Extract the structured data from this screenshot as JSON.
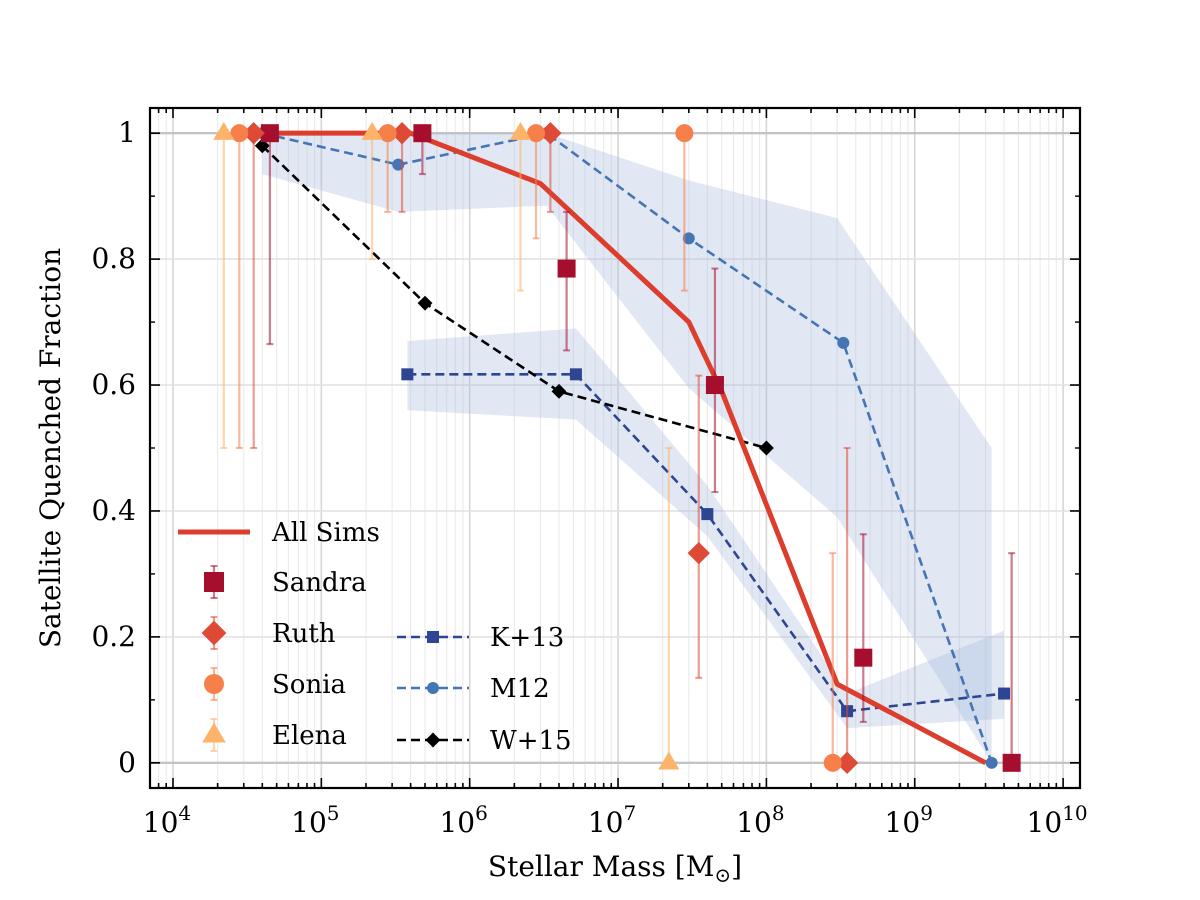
{
  "chart_data": {
    "type": "scatter",
    "title": "",
    "xlabel": "Stellar Mass [M",
    "xlabel_sub": "⊙",
    "xlabel_close": "]",
    "ylabel": "Satellite Quenched Fraction",
    "xscale": "log",
    "xlim": [
      7000,
      13000000000
    ],
    "ylim": [
      -0.04,
      1.04
    ],
    "grid": true,
    "legend_position": "lower-left",
    "x_ticks": [
      {
        "value": 10000,
        "base": "10",
        "exp": "4"
      },
      {
        "value": 100000,
        "base": "10",
        "exp": "5"
      },
      {
        "value": 1000000,
        "base": "10",
        "exp": "6"
      },
      {
        "value": 10000000,
        "base": "10",
        "exp": "7"
      },
      {
        "value": 100000000,
        "base": "10",
        "exp": "8"
      },
      {
        "value": 1000000000,
        "base": "10",
        "exp": "9"
      },
      {
        "value": 10000000000,
        "base": "10",
        "exp": "10"
      }
    ],
    "y_ticks": [
      {
        "value": 0,
        "label": "0"
      },
      {
        "value": 0.2,
        "label": "0.2"
      },
      {
        "value": 0.4,
        "label": "0.4"
      },
      {
        "value": 0.6,
        "label": "0.6"
      },
      {
        "value": 0.8,
        "label": "0.8"
      },
      {
        "value": 1,
        "label": "1"
      }
    ],
    "all_sims": {
      "name": "All Sims",
      "color": "#dc3d2d",
      "x": [
        30000,
        50000,
        400000,
        3000000,
        30000000,
        50000000,
        300000000,
        3000000000
      ],
      "y": [
        1.0,
        1.0,
        1.0,
        0.92,
        0.7,
        0.59,
        0.125,
        0.0
      ]
    },
    "sims": [
      {
        "name": "Sandra",
        "color": "#a50f2d",
        "marker": "square",
        "points": [
          {
            "x": 45000,
            "y": 1.0,
            "lo": 0.665,
            "hi": 1.0
          },
          {
            "x": 480000,
            "y": 1.0,
            "lo": 0.935,
            "hi": 1.0
          },
          {
            "x": 4500000,
            "y": 0.785,
            "lo": 0.655,
            "hi": 0.875
          },
          {
            "x": 45000000,
            "y": 0.6,
            "lo": 0.43,
            "hi": 0.785
          },
          {
            "x": 450000000,
            "y": 0.167,
            "lo": 0.065,
            "hi": 0.363
          },
          {
            "x": 4500000000,
            "y": 0.0,
            "lo": 0.0,
            "hi": 0.333
          }
        ]
      },
      {
        "name": "Ruth",
        "color": "#de4a36",
        "marker": "diamond",
        "points": [
          {
            "x": 35000,
            "y": 1.0,
            "lo": 0.5,
            "hi": 1.0
          },
          {
            "x": 350000,
            "y": 1.0,
            "lo": 0.875,
            "hi": 1.0
          },
          {
            "x": 3500000,
            "y": 1.0,
            "lo": 0.875,
            "hi": 1.0
          },
          {
            "x": 35000000,
            "y": 0.333,
            "lo": 0.135,
            "hi": 0.615
          },
          {
            "x": 350000000,
            "y": 0.0,
            "lo": 0.0,
            "hi": 0.5
          }
        ]
      },
      {
        "name": "Sonia",
        "color": "#f67f4a",
        "marker": "circle",
        "points": [
          {
            "x": 28000,
            "y": 1.0,
            "lo": 0.5,
            "hi": 1.0
          },
          {
            "x": 280000,
            "y": 1.0,
            "lo": 0.875,
            "hi": 1.0
          },
          {
            "x": 2800000,
            "y": 1.0,
            "lo": 0.833,
            "hi": 1.0
          },
          {
            "x": 28000000,
            "y": 1.0,
            "lo": 0.75,
            "hi": 1.0
          },
          {
            "x": 280000000,
            "y": 0.0,
            "lo": 0.0,
            "hi": 0.333
          }
        ]
      },
      {
        "name": "Elena",
        "color": "#fdb46a",
        "marker": "triangle",
        "points": [
          {
            "x": 22000,
            "y": 1.0,
            "lo": 0.5,
            "hi": 1.0
          },
          {
            "x": 220000,
            "y": 1.0,
            "lo": 0.8,
            "hi": 1.0
          },
          {
            "x": 2200000,
            "y": 1.0,
            "lo": 0.75,
            "hi": 1.0
          },
          {
            "x": 22000000,
            "y": 0.0,
            "lo": 0.0,
            "hi": 0.5
          }
        ]
      }
    ],
    "observations": [
      {
        "name": "K+13",
        "color": "#2e4593",
        "marker": "square",
        "x": [
          380000,
          5200000,
          40000000,
          350000000,
          4000000000
        ],
        "y": [
          0.617,
          0.617,
          0.395,
          0.082,
          0.11
        ],
        "band_x": [
          380000,
          5200000,
          40000000,
          350000000,
          4000000000
        ],
        "band_lo": [
          0.56,
          0.545,
          0.36,
          0.055,
          0.07
        ],
        "band_hi": [
          0.67,
          0.69,
          0.44,
          0.11,
          0.21
        ]
      },
      {
        "name": "M12",
        "color": "#4575b4",
        "marker": "circle",
        "x": [
          40000,
          330000,
          3300000,
          30000000,
          330000000,
          3300000000
        ],
        "y": [
          1.0,
          0.95,
          1.0,
          0.833,
          0.667,
          0.0
        ],
        "band_x": [
          40000,
          330000,
          3300000,
          30000000,
          300000000,
          3300000000
        ],
        "band_lo": [
          0.935,
          0.875,
          0.885,
          0.595,
          0.39,
          0.0
        ],
        "band_hi": [
          1.0,
          1.0,
          1.0,
          0.925,
          0.865,
          0.5
        ]
      },
      {
        "name": "W+15",
        "color": "#000000",
        "marker": "diamond",
        "x": [
          40000,
          500000,
          4000000,
          100000000
        ],
        "y": [
          0.98,
          0.73,
          0.59,
          0.5
        ]
      }
    ],
    "band_color": "#a3b6dc"
  }
}
